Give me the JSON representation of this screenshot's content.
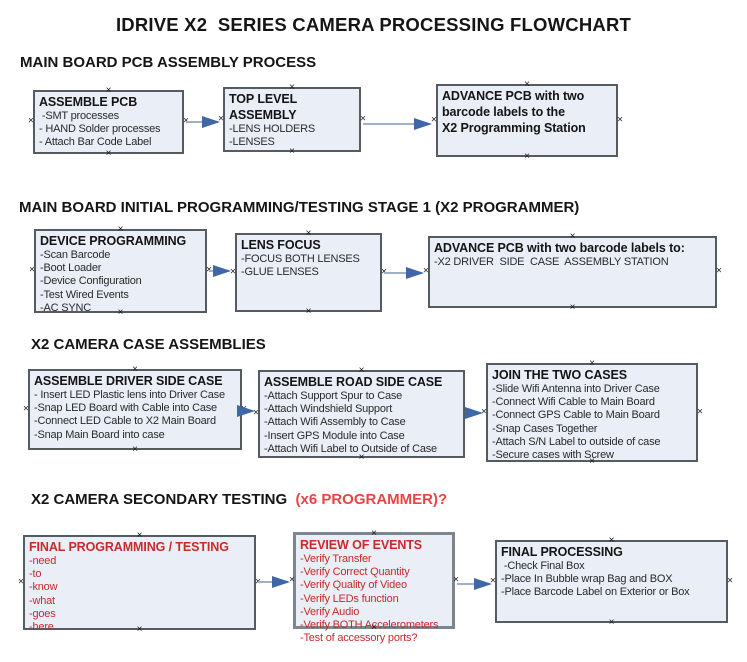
{
  "title": "IDRIVE X2  SERIES CAMERA PROCESSING FLOWCHART",
  "colors": {
    "box_fill": "#e9eef7",
    "box_border": "#565b62",
    "arrow_line": "#9db1ca",
    "arrow_head": "#3f67a8",
    "red_box_text": "#c92a2a",
    "heading_red": "#e84444",
    "heading_black": "#151515"
  },
  "sections": [
    {
      "heading": "MAIN BOARD PCB ASSEMBLY PROCESS",
      "boxes": [
        {
          "title": "ASSEMBLE PCB",
          "items": [
            " -SMT processes",
            "- HAND Solder processes",
            "- Attach Bar Code Label"
          ]
        },
        {
          "title": "TOP LEVEL ASSEMBLY",
          "items": [
            "-LENS HOLDERS",
            "-LENSES"
          ]
        },
        {
          "title": "ADVANCE PCB with two\nbarcode labels to the\n X2 Programming Station",
          "items": []
        }
      ]
    },
    {
      "heading": "MAIN BOARD INITIAL PROGRAMMING/TESTING STAGE 1 (X2 PROGRAMMER)",
      "boxes": [
        {
          "title": "DEVICE PROGRAMMING",
          "items": [
            "-Scan Barcode",
            "-Boot Loader",
            "-Device Configuration",
            "-Test Wired Events",
            "-AC SYNC"
          ]
        },
        {
          "title": "LENS FOCUS",
          "items": [
            "-FOCUS BOTH LENSES",
            "-GLUE LENSES"
          ]
        },
        {
          "title": "ADVANCE PCB with two barcode labels to:",
          "items": [
            "-X2 DRIVER  SIDE  CASE  ASSEMBLY STATION"
          ]
        }
      ]
    },
    {
      "heading": "X2 CAMERA CASE ASSEMBLIES",
      "boxes": [
        {
          "title": "ASSEMBLE DRIVER SIDE CASE",
          "items": [
            "- Insert LED Plastic lens into Driver Case",
            "-Snap LED Board with Cable into Case",
            "-Connect LED Cable to X2 Main Board",
            "-Snap Main Board into case"
          ]
        },
        {
          "title": "ASSEMBLE ROAD SIDE CASE",
          "items": [
            "-Attach Support Spur to Case",
            "-Attach Windshield Support",
            "-Attach Wifi Assembly to Case",
            "-Insert GPS Module into Case",
            "-Attach Wifi Label to Outside of Case"
          ]
        },
        {
          "title": "JOIN THE TWO CASES",
          "items": [
            "-Slide Wifi Antenna into Driver Case",
            "-Connect Wifi Cable to Main Board",
            "-Connect GPS Cable to Main Board",
            "-Snap Cases Together",
            "-Attach S/N Label to outside of case",
            "-Secure cases with Screw"
          ]
        }
      ]
    },
    {
      "heading": "X2 CAMERA SECONDARY TESTING  ",
      "heading_suffix": "(x6 PROGRAMMER)?",
      "boxes": [
        {
          "title": "FINAL PROGRAMMING / TESTING",
          "items": [
            "-need",
            "-to",
            "-know",
            "-what",
            "-goes",
            "-here"
          ]
        },
        {
          "title": "REVIEW OF EVENTS",
          "items": [
            "-Verify Transfer",
            "-Verify Correct Quantity",
            "-Verify Quality of Video",
            "-Verify LEDs function",
            "-Verify Audio",
            "-Verify BOTH Accelerometers",
            "-Test of accessory ports?"
          ]
        },
        {
          "title": "FINAL PROCESSING",
          "items": [
            " -Check Final Box",
            "-Place In Bubble wrap Bag and BOX",
            "-Place Barcode Label on Exterior or Box"
          ]
        }
      ]
    }
  ]
}
